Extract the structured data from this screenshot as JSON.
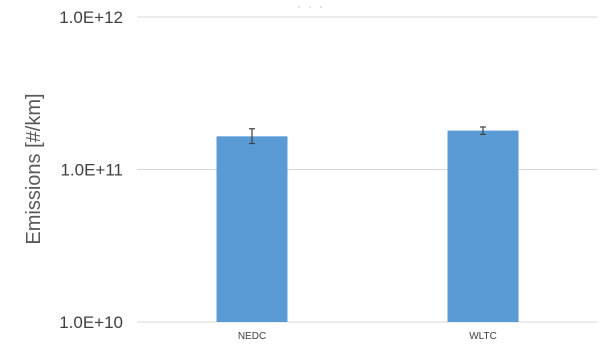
{
  "chart_data": {
    "type": "bar",
    "title": "",
    "xlabel": "",
    "ylabel": "Emissions [#/km]",
    "yscale": "log",
    "ylim": [
      10000000000.0,
      1000000000000.0
    ],
    "yticks": [
      {
        "value": 1000000000000.0,
        "label": "1.0E+12"
      },
      {
        "value": 100000000000.0,
        "label": "1.0E+11"
      },
      {
        "value": 10000000000.0,
        "label": "1.0E+10"
      }
    ],
    "categories": [
      "NEDC",
      "WLTC"
    ],
    "values": [
      165000000000.0,
      180000000000.0
    ],
    "error_low": [
      148000000000.0,
      170000000000.0
    ],
    "error_high": [
      185000000000.0,
      190000000000.0
    ],
    "grid": true,
    "legend": "none",
    "bar_color": "#5b9bd5"
  }
}
